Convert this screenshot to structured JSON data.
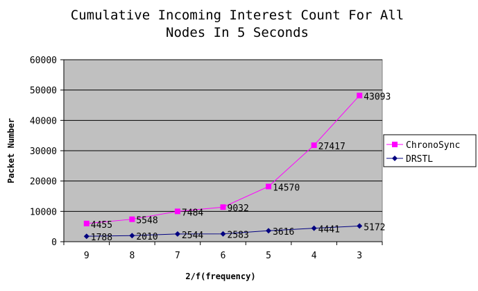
{
  "chart_data": {
    "type": "line",
    "title_lines": [
      "Cumulative Incoming Interest Count For All",
      "Nodes In 5 Seconds"
    ],
    "xlabel": "2/f(frequency)",
    "ylabel": "Packet Number",
    "categories": [
      "9",
      "8",
      "7",
      "6",
      "5",
      "4",
      "3"
    ],
    "ylim": [
      0,
      60000
    ],
    "yticks": [
      0,
      10000,
      20000,
      30000,
      40000,
      50000,
      60000
    ],
    "grid": true,
    "legend_position": "right",
    "series": [
      {
        "name": "ChronoSync",
        "values": [
          6000,
          7400,
          10000,
          11400,
          18200,
          31800,
          48200
        ],
        "labels": [
          "4455",
          "5548",
          "7484",
          "9032",
          "14570",
          "27417",
          "43093"
        ],
        "color": "#ff00ff",
        "marker": "square"
      },
      {
        "name": "DRSTL",
        "values": [
          1788,
          2010,
          2544,
          2583,
          3616,
          4441,
          5172
        ],
        "labels": [
          "1788",
          "2010",
          "2544",
          "2583",
          "3616",
          "4441",
          "5172"
        ],
        "color": "#000080",
        "marker": "diamond"
      }
    ],
    "plot_background": "#c0c0c0"
  }
}
